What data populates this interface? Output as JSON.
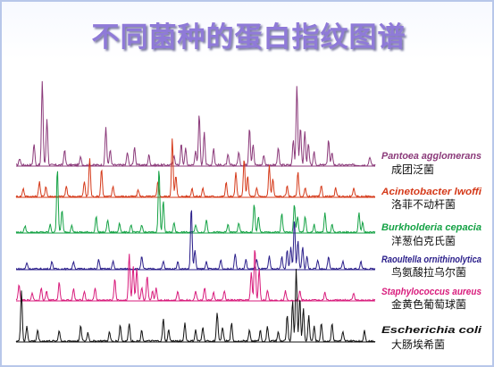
{
  "title": "不同菌种的蛋白指纹图谱",
  "chart_data": {
    "type": "line",
    "title": "不同菌种的蛋白指纹图谱",
    "xlabel": "",
    "ylabel": "",
    "xlim": [
      0,
      100
    ],
    "series": [
      {
        "name": "Pantoea agglomerans",
        "chinese_name": "成团泛菌",
        "color": "#8b3a7a",
        "peaks": [
          [
            1,
            0.08
          ],
          [
            5,
            0.25
          ],
          [
            7.3,
            1.0
          ],
          [
            8.6,
            0.55
          ],
          [
            13.5,
            0.18
          ],
          [
            18,
            0.1
          ],
          [
            25,
            0.45
          ],
          [
            26.2,
            0.18
          ],
          [
            31,
            0.15
          ],
          [
            33,
            0.22
          ],
          [
            37,
            0.12
          ],
          [
            44,
            0.12
          ],
          [
            46,
            0.25
          ],
          [
            47.2,
            0.2
          ],
          [
            50,
            0.18
          ],
          [
            51,
            0.6
          ],
          [
            52.4,
            0.4
          ],
          [
            55,
            0.2
          ],
          [
            59,
            0.12
          ],
          [
            62,
            0.15
          ],
          [
            65,
            0.45
          ],
          [
            66,
            0.25
          ],
          [
            69,
            0.12
          ],
          [
            73,
            0.2
          ],
          [
            77.2,
            0.3
          ],
          [
            78.2,
            0.95
          ],
          [
            79.2,
            0.45
          ],
          [
            80.4,
            0.4
          ],
          [
            81.4,
            0.25
          ],
          [
            83,
            0.15
          ],
          [
            87,
            0.3
          ],
          [
            88,
            0.15
          ],
          [
            98.5,
            0.1
          ]
        ]
      },
      {
        "name": "Acinetobacter lwoffi",
        "chinese_name": "洛菲不动杆菌",
        "color": "#d53a1a",
        "peaks": [
          [
            2,
            0.12
          ],
          [
            6.5,
            0.22
          ],
          [
            8.3,
            0.15
          ],
          [
            14,
            0.15
          ],
          [
            19,
            0.22
          ],
          [
            20.5,
            0.55
          ],
          [
            23.8,
            0.4
          ],
          [
            27,
            0.15
          ],
          [
            34,
            0.1
          ],
          [
            39.5,
            0.22
          ],
          [
            43.5,
            0.85
          ],
          [
            44.5,
            0.3
          ],
          [
            49,
            0.12
          ],
          [
            52,
            0.12
          ],
          [
            58.5,
            0.2
          ],
          [
            61.2,
            0.35
          ],
          [
            63.5,
            0.55
          ],
          [
            64.5,
            0.3
          ],
          [
            67,
            0.12
          ],
          [
            70.5,
            0.45
          ],
          [
            71.5,
            0.25
          ],
          [
            75.5,
            0.15
          ],
          [
            78.5,
            0.35
          ],
          [
            80.5,
            0.12
          ],
          [
            85,
            0.15
          ],
          [
            89,
            0.12
          ],
          [
            94,
            0.12
          ]
        ]
      },
      {
        "name": "Burkholderia cepacia",
        "chinese_name": "洋葱伯克氏菌",
        "color": "#15a245",
        "peaks": [
          [
            2.5,
            0.1
          ],
          [
            9.5,
            0.12
          ],
          [
            11.5,
            1.0
          ],
          [
            12.8,
            0.35
          ],
          [
            15.5,
            0.12
          ],
          [
            22.3,
            0.25
          ],
          [
            25.5,
            0.2
          ],
          [
            28.8,
            0.15
          ],
          [
            32,
            0.12
          ],
          [
            35,
            0.12
          ],
          [
            39.8,
            1.0
          ],
          [
            41,
            0.5
          ],
          [
            44,
            0.15
          ],
          [
            50,
            0.12
          ],
          [
            53,
            0.2
          ],
          [
            59,
            0.12
          ],
          [
            62,
            0.15
          ],
          [
            66.3,
            0.45
          ],
          [
            67.5,
            0.25
          ],
          [
            74,
            0.3
          ],
          [
            77.5,
            0.45
          ],
          [
            78.4,
            0.25
          ],
          [
            80.5,
            0.25
          ],
          [
            83,
            0.12
          ],
          [
            86,
            0.3
          ],
          [
            88,
            0.12
          ],
          [
            95.5,
            0.3
          ],
          [
            96.5,
            0.15
          ]
        ]
      },
      {
        "name": "Raoultella ornithinolytica",
        "chinese_name": "鸟氨酸拉乌尔菌",
        "color": "#2a1e8a",
        "peaks": [
          [
            3,
            0.1
          ],
          [
            10,
            0.12
          ],
          [
            16,
            0.12
          ],
          [
            23,
            0.15
          ],
          [
            27,
            0.12
          ],
          [
            35,
            0.2
          ],
          [
            41,
            0.12
          ],
          [
            45,
            0.12
          ],
          [
            48.8,
            1.0
          ],
          [
            49.8,
            0.3
          ],
          [
            53,
            0.12
          ],
          [
            57,
            0.15
          ],
          [
            61,
            0.25
          ],
          [
            64,
            0.15
          ],
          [
            67,
            0.15
          ],
          [
            70.5,
            0.2
          ],
          [
            74,
            0.2
          ],
          [
            75.5,
            0.3
          ],
          [
            76.5,
            0.35
          ],
          [
            77.5,
            0.8
          ],
          [
            78.5,
            0.45
          ],
          [
            79.8,
            0.35
          ],
          [
            81,
            0.2
          ],
          [
            84,
            0.15
          ],
          [
            87,
            0.2
          ],
          [
            91,
            0.12
          ],
          [
            96,
            0.12
          ]
        ]
      },
      {
        "name": "Staphylococcus aureus",
        "chinese_name": "金黄色葡萄球菌",
        "color": "#d81c7c",
        "peaks": [
          [
            0.8,
            0.25
          ],
          [
            4.5,
            0.12
          ],
          [
            7,
            0.2
          ],
          [
            8.5,
            0.15
          ],
          [
            12,
            0.3
          ],
          [
            16,
            0.18
          ],
          [
            19,
            0.15
          ],
          [
            22,
            0.2
          ],
          [
            27.5,
            0.35
          ],
          [
            31.5,
            0.75
          ],
          [
            32.6,
            0.55
          ],
          [
            33.6,
            0.5
          ],
          [
            35,
            0.2
          ],
          [
            36.5,
            0.4
          ],
          [
            38,
            0.15
          ],
          [
            39,
            0.2
          ],
          [
            45,
            0.15
          ],
          [
            50,
            0.15
          ],
          [
            52.5,
            0.2
          ],
          [
            55,
            0.12
          ],
          [
            58,
            0.15
          ],
          [
            65.5,
            0.45
          ],
          [
            66.5,
            0.85
          ],
          [
            67.7,
            0.5
          ],
          [
            70,
            0.15
          ],
          [
            75,
            0.15
          ],
          [
            79,
            0.15
          ],
          [
            86,
            0.12
          ],
          [
            94,
            0.12
          ]
        ]
      },
      {
        "name": "Escherichia coli",
        "chinese_name": "大肠埃希菌",
        "color": "#111111",
        "peaks": [
          [
            1.5,
            0.7
          ],
          [
            3,
            0.2
          ],
          [
            6,
            0.15
          ],
          [
            12,
            0.15
          ],
          [
            18,
            0.22
          ],
          [
            20,
            0.12
          ],
          [
            26,
            0.12
          ],
          [
            29,
            0.22
          ],
          [
            31.5,
            0.25
          ],
          [
            35,
            0.15
          ],
          [
            41,
            0.3
          ],
          [
            42.5,
            0.15
          ],
          [
            47,
            0.25
          ],
          [
            50,
            0.15
          ],
          [
            52,
            0.2
          ],
          [
            56,
            0.4
          ],
          [
            57.5,
            0.2
          ],
          [
            60,
            0.25
          ],
          [
            65,
            0.15
          ],
          [
            68,
            0.15
          ],
          [
            70,
            0.2
          ],
          [
            73,
            0.12
          ],
          [
            75.5,
            0.35
          ],
          [
            77,
            0.55
          ],
          [
            78,
            1.0
          ],
          [
            79,
            0.6
          ],
          [
            80,
            0.45
          ],
          [
            81.5,
            0.35
          ],
          [
            83,
            0.2
          ],
          [
            85,
            0.25
          ],
          [
            88,
            0.25
          ],
          [
            91,
            0.12
          ],
          [
            97,
            0.15
          ]
        ]
      }
    ]
  }
}
